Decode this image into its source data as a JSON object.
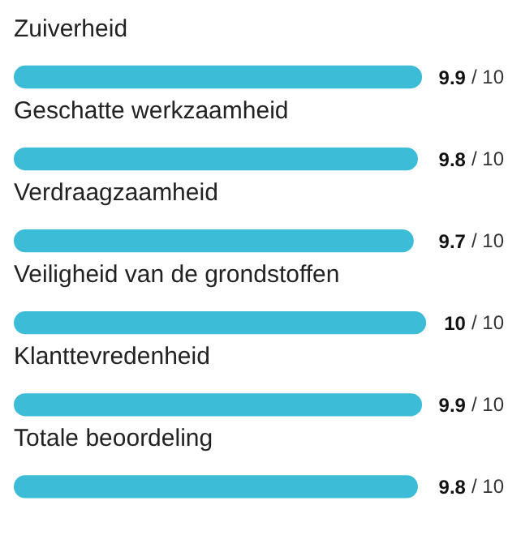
{
  "chart_data": {
    "type": "bar",
    "orientation": "horizontal",
    "tick_labels": false,
    "grid": false,
    "data_labels": true,
    "categories": [
      "Zuiverheid",
      "Geschatte werkzaamheid",
      "Verdraagzaamheid",
      "Veiligheid van de grondstoffen",
      "Klanttevredenheid",
      "Totale beoordeling"
    ],
    "series": [
      {
        "color": "#3dbcd8",
        "values": [
          9.9,
          9.8,
          9.7,
          10,
          9.9,
          9.8
        ]
      }
    ],
    "annotations": [
      "/ 10",
      "/ 10",
      "/ 10",
      "/ 10",
      "/ 10",
      "/ 10"
    ]
  }
}
